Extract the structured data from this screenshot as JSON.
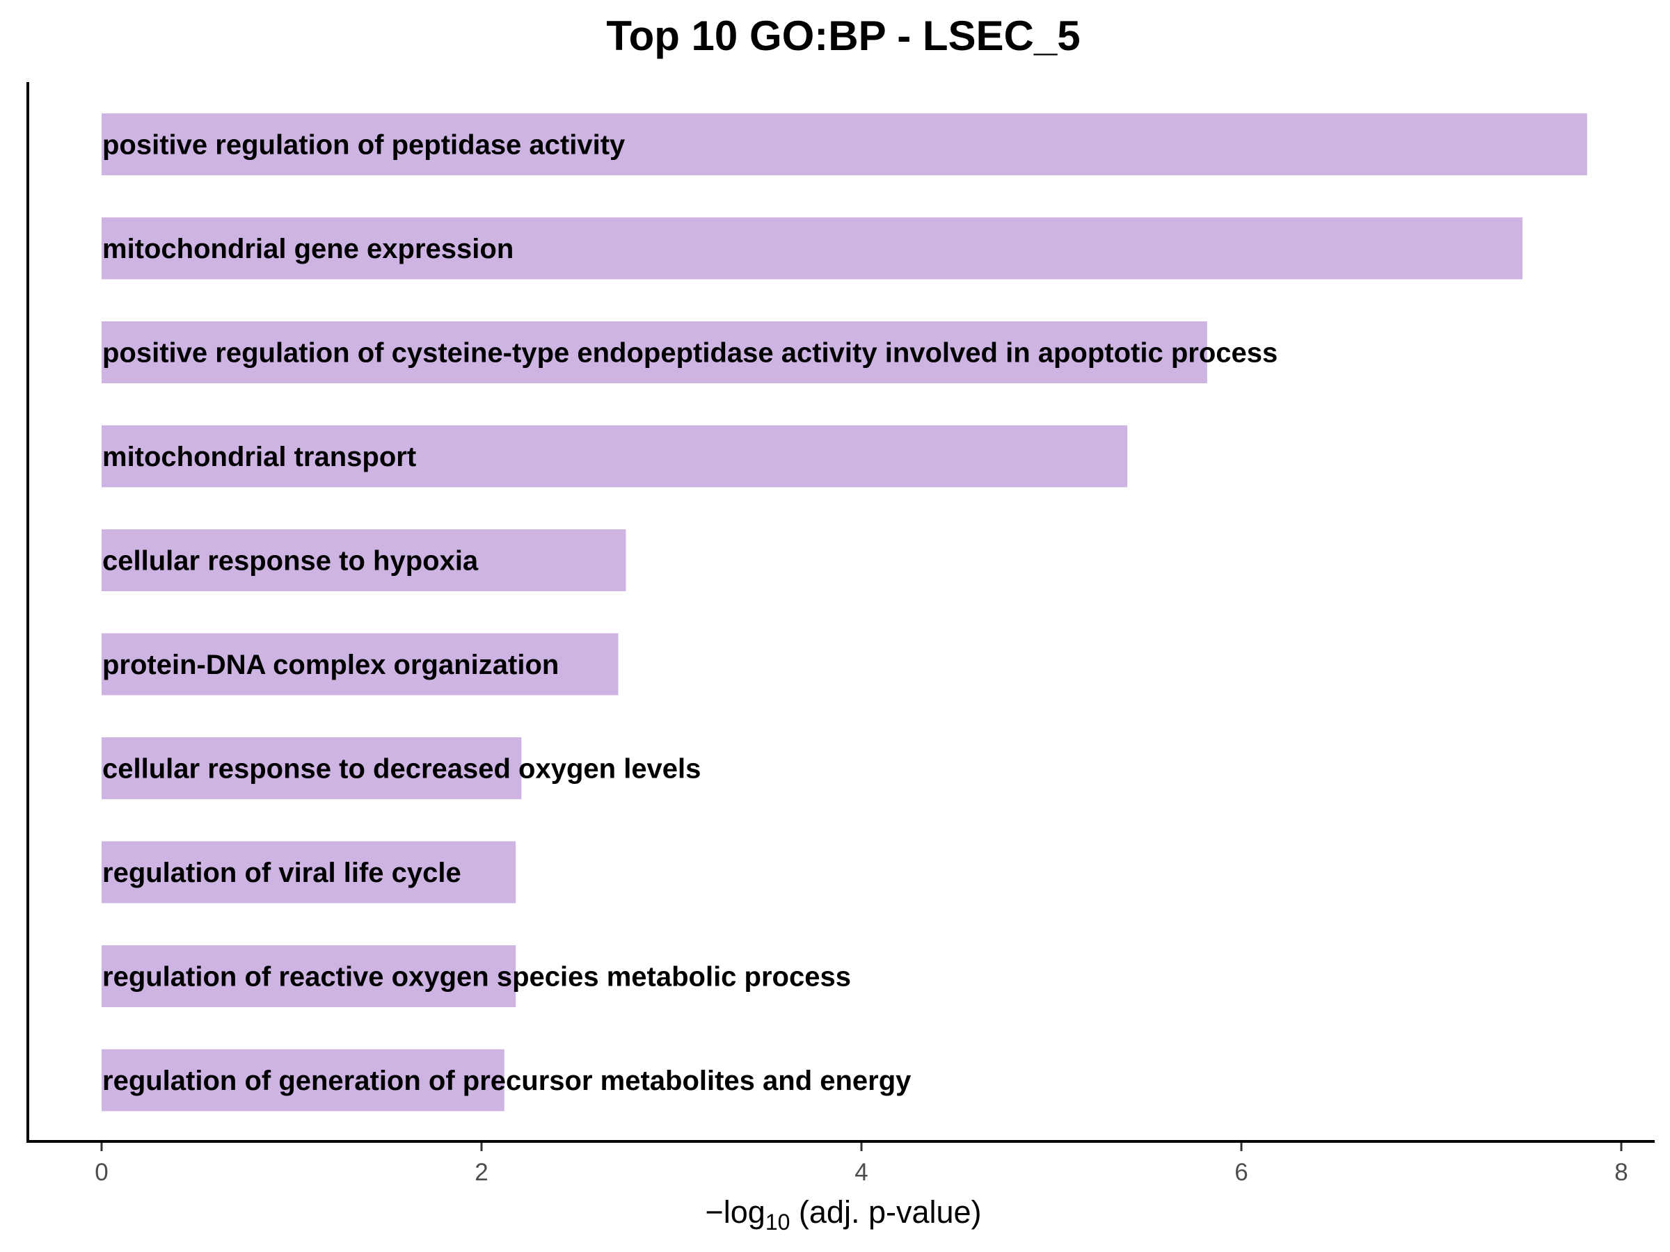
{
  "chart_data": {
    "type": "bar",
    "orientation": "horizontal",
    "title": "Top 10 GO:BP - LSEC_5",
    "xlabel": {
      "prefix": "−log",
      "subscript": "10",
      "suffix": " (adj. p-value)"
    },
    "ylabel": "",
    "xlim": [
      -0.4,
      8.2
    ],
    "xticks": [
      0,
      2,
      4,
      6,
      8
    ],
    "xtick_labels": [
      "0",
      "2",
      "4",
      "6",
      "8"
    ],
    "grid": false,
    "legend": "none",
    "bar_color": "#cdb4e3",
    "categories": [
      "positive regulation of peptidase activity",
      "mitochondrial gene expression",
      "positive regulation of cysteine-type endopeptidase activity involved in apoptotic process",
      "mitochondrial transport",
      "cellular response to hypoxia",
      "protein-DNA complex organization",
      "cellular response to decreased oxygen levels",
      "regulation of viral life cycle",
      "regulation of reactive oxygen species metabolic process",
      "regulation of generation of precursor metabolites and energy"
    ],
    "values": [
      7.82,
      7.48,
      5.82,
      5.4,
      2.76,
      2.72,
      2.21,
      2.18,
      2.18,
      2.12
    ]
  }
}
